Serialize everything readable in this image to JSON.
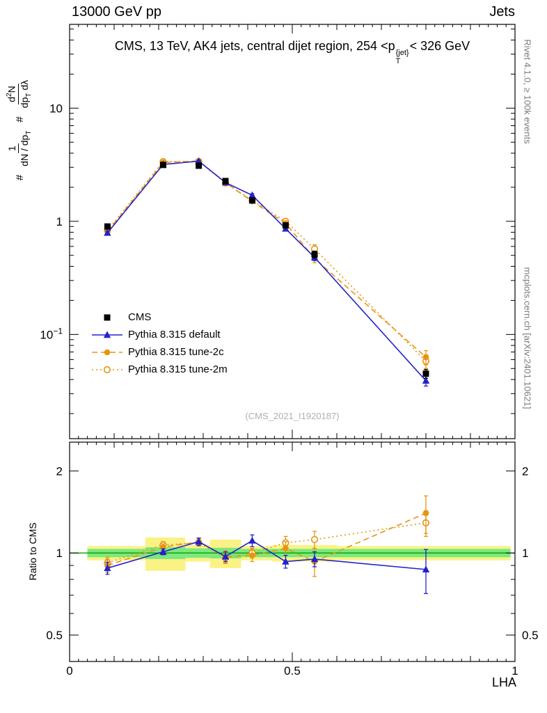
{
  "header": {
    "left": "13000 GeV pp",
    "right": "Jets"
  },
  "title": {
    "prefix": "CMS, 13 TeV, AK4 jets, central dijet region, 254 <p",
    "sup": "{jet}",
    "sub": "T",
    "suffix": "< 326 GeV"
  },
  "ylabel_parts": {
    "hash": "#",
    "frac1": {
      "num": "1",
      "den_a": "dN / dp",
      "den_b": "T"
    },
    "frac2": {
      "num_a": "d",
      "num_b": "2",
      "num_c": "N",
      "den_a": "dp",
      "den_b": "T",
      "den_c": " dλ"
    }
  },
  "side": {
    "rivet": "Rivet 4.1.0, ≥ 100k events",
    "mcplots": "mcplots.cern.ch [arXiv:2401.10621]"
  },
  "watermark": "(CMS_2021_I1920187)",
  "chart_data": {
    "type": "line",
    "title": "CMS, 13 TeV, AK4 jets, central dijet region, 254 < pT{jet} < 326 GeV",
    "xlabel": "LHA",
    "ylabel": "# 1/(dN/dpT) # d^2N/(dpT dλ)",
    "ratio_ylabel": "Ratio to CMS",
    "legend_position": "middle-left",
    "x_range": [
      0,
      1
    ],
    "main_y_range": [
      0.012,
      55
    ],
    "ratio_y_range": [
      0.4,
      2.55
    ],
    "x_ticks": [
      {
        "v": 0,
        "label": "0"
      },
      {
        "v": 0.5,
        "label": "0.5"
      },
      {
        "v": 1,
        "label": "1"
      }
    ],
    "main_y_ticks": [
      {
        "v": 0.1,
        "label": "10^-1"
      },
      {
        "v": 1,
        "label": "1"
      },
      {
        "v": 10,
        "label": "10"
      }
    ],
    "ratio_y_ticks": [
      {
        "v": 0.5,
        "label": "0.5"
      },
      {
        "v": 1,
        "label": "1"
      },
      {
        "v": 2,
        "label": "2"
      }
    ],
    "x": [
      0.085,
      0.21,
      0.29,
      0.35,
      0.41,
      0.485,
      0.55,
      0.8
    ],
    "series": [
      {
        "name": "CMS",
        "color": "#000000",
        "marker": "square-filled",
        "line": "none",
        "values": [
          0.9,
          3.15,
          3.1,
          2.27,
          1.53,
          0.92,
          0.51,
          0.045
        ],
        "errors": [
          0.04,
          0.12,
          0.12,
          0.09,
          0.07,
          0.05,
          0.035,
          0.004
        ],
        "ratio": null,
        "ratio_errors": null
      },
      {
        "name": "Pythia 8.315 default",
        "color": "#2222cc",
        "marker": "triangle-filled",
        "line": "solid",
        "values": [
          0.79,
          3.18,
          3.4,
          2.2,
          1.7,
          0.86,
          0.48,
          0.039
        ],
        "errors": [
          0.03,
          0.08,
          0.08,
          0.06,
          0.05,
          0.04,
          0.03,
          0.004
        ],
        "ratio": [
          0.88,
          1.01,
          1.1,
          0.97,
          1.11,
          0.93,
          0.95,
          0.87
        ],
        "ratio_errors": [
          0.045,
          0.025,
          0.035,
          0.04,
          0.055,
          0.05,
          0.06,
          0.16
        ]
      },
      {
        "name": "Pythia 8.315 tune-2c",
        "color": "#e8940f",
        "marker": "circle-filled",
        "line": "dashed",
        "values": [
          0.81,
          3.31,
          3.41,
          2.2,
          1.5,
          0.96,
          0.47,
          0.063
        ],
        "errors": [
          0.04,
          0.09,
          0.09,
          0.07,
          0.06,
          0.05,
          0.04,
          0.009
        ],
        "ratio": [
          0.9,
          1.05,
          1.1,
          0.97,
          0.98,
          1.04,
          0.93,
          1.4
        ],
        "ratio_errors": [
          0.05,
          0.03,
          0.03,
          0.05,
          0.05,
          0.06,
          0.11,
          0.22
        ]
      },
      {
        "name": "Pythia 8.315 tune-2m",
        "color": "#e8940f",
        "marker": "circle-open",
        "line": "dotted",
        "values": [
          0.83,
          3.37,
          3.38,
          2.18,
          1.53,
          1.0,
          0.57,
          0.058
        ],
        "errors": [
          0.04,
          0.09,
          0.09,
          0.07,
          0.06,
          0.05,
          0.05,
          0.008
        ],
        "ratio": [
          0.92,
          1.07,
          1.09,
          0.96,
          1.0,
          1.09,
          1.12,
          1.29
        ],
        "ratio_errors": [
          0.045,
          0.03,
          0.03,
          0.045,
          0.04,
          0.06,
          0.08,
          0.14
        ]
      }
    ],
    "bands": {
      "center_line_color": "#00a000",
      "yellow": {
        "color": "#fbf286",
        "segments": [
          [
            0.04,
            0.17,
            0.94,
            1.06
          ],
          [
            0.17,
            0.26,
            0.86,
            1.14
          ],
          [
            0.26,
            0.315,
            0.93,
            1.07
          ],
          [
            0.315,
            0.385,
            0.88,
            1.12
          ],
          [
            0.385,
            0.455,
            0.94,
            1.06
          ],
          [
            0.455,
            0.6,
            0.93,
            1.07
          ],
          [
            0.6,
            0.99,
            0.94,
            1.06
          ]
        ]
      },
      "green": {
        "color": "#7de87d",
        "segments": [
          [
            0.04,
            0.17,
            0.965,
            1.035
          ],
          [
            0.17,
            0.26,
            0.95,
            1.05
          ],
          [
            0.26,
            0.315,
            0.96,
            1.04
          ],
          [
            0.315,
            0.385,
            0.955,
            1.045
          ],
          [
            0.385,
            0.99,
            0.965,
            1.035
          ]
        ]
      }
    }
  }
}
